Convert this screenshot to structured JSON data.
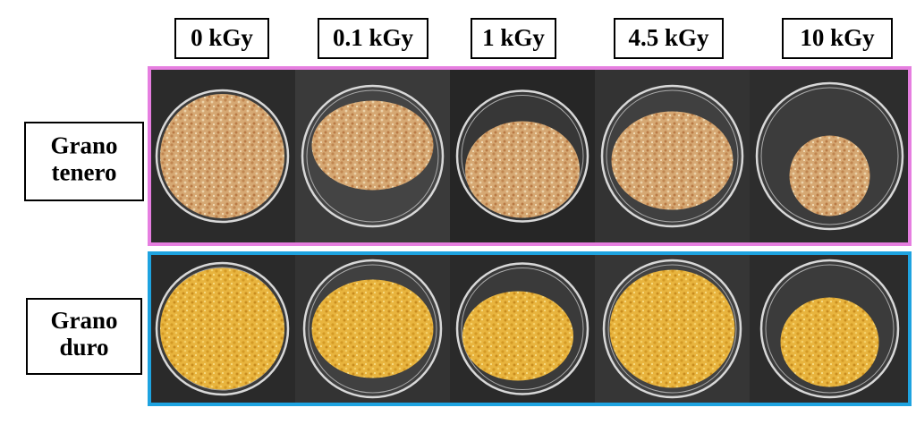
{
  "column_labels": [
    "0 kGy",
    "0.1 kGy",
    "1 kGy",
    "4.5 kGy",
    "10 kGy"
  ],
  "rows": [
    {
      "label_lines": [
        "Grano",
        "tenero"
      ]
    },
    {
      "label_lines": [
        "Grano",
        "duro"
      ]
    }
  ]
}
